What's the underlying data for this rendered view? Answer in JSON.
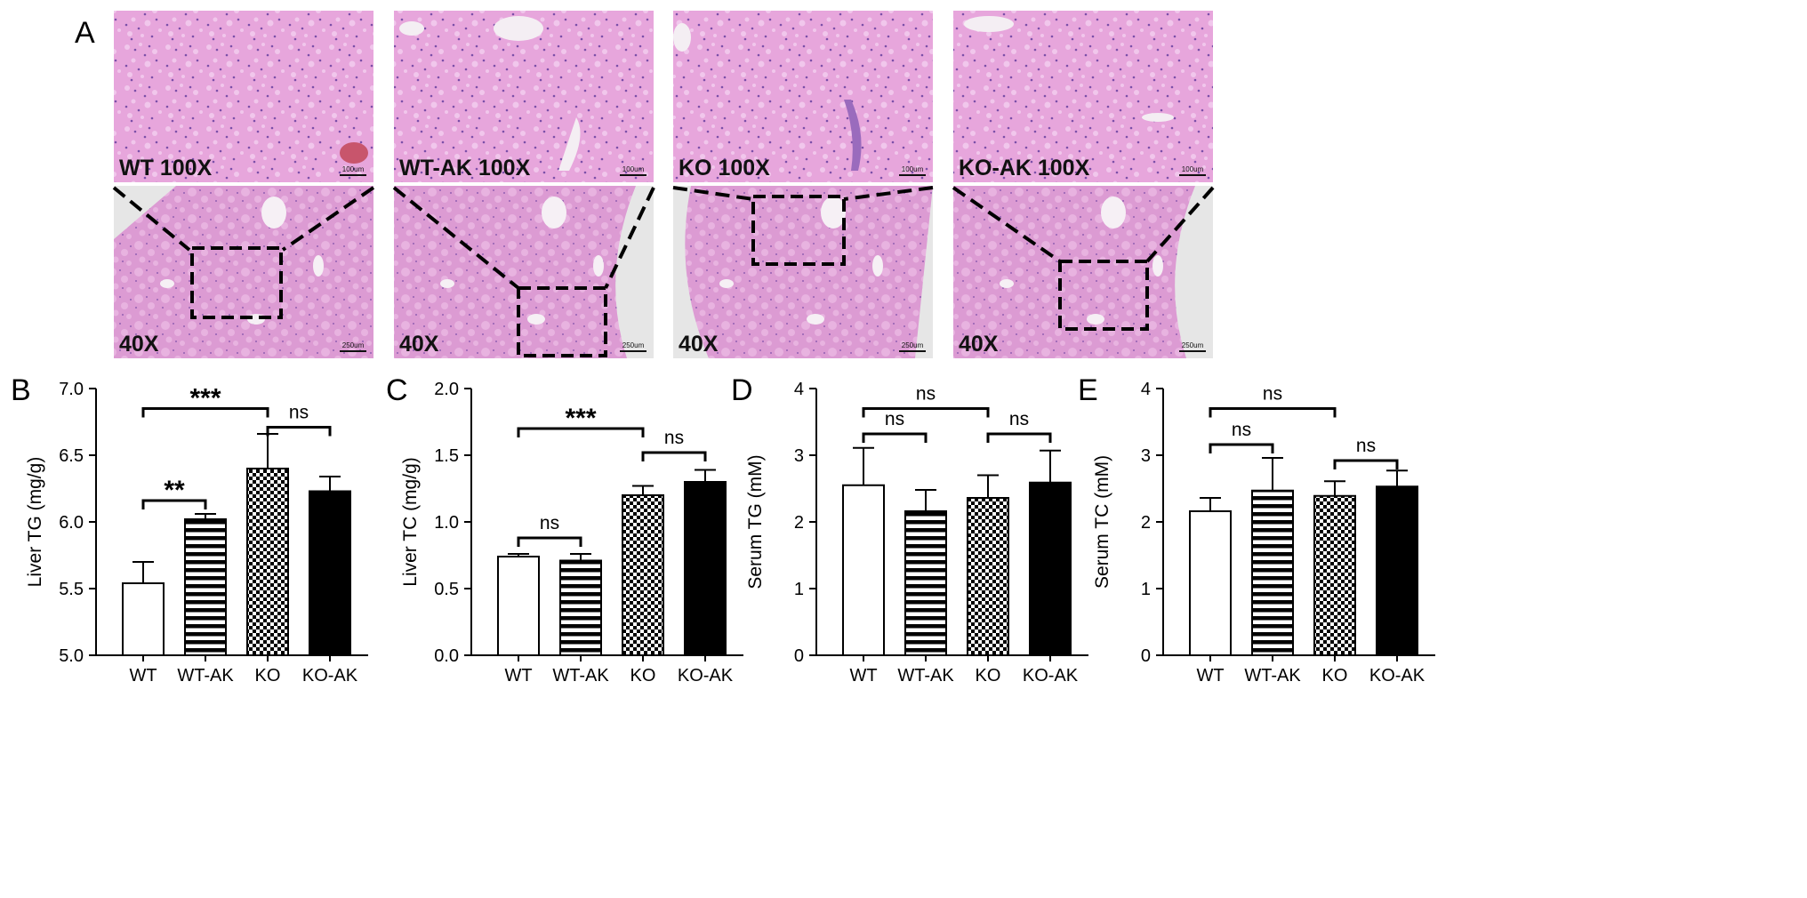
{
  "panel_a": {
    "letter": "A",
    "groups": [
      {
        "id": "wt",
        "top_label": "WT  100X",
        "bottom_label": "40X",
        "scale_top": "100um",
        "scale_bottom": "250um"
      },
      {
        "id": "wt-ak",
        "top_label": "WT-AK  100X",
        "bottom_label": "40X",
        "scale_top": "100um",
        "scale_bottom": "250um"
      },
      {
        "id": "ko",
        "top_label": "KO  100X",
        "bottom_label": "40X",
        "scale_top": "100um",
        "scale_bottom": "250um"
      },
      {
        "id": "ko-ak",
        "top_label": "KO-AK  100X",
        "bottom_label": "40X",
        "scale_top": "100um",
        "scale_bottom": "250um"
      }
    ]
  },
  "colors": {
    "tissue_pink": "#e7a6dc",
    "tissue_light": "#f1c7ec",
    "tissue_deep": "#cf7fc4",
    "nuclei": "#7b4fa8",
    "background_gray": "#e6e6e6",
    "bar_edge": "#000000"
  },
  "chart_data": [
    {
      "type": "bar",
      "panel": "B",
      "categories": [
        "WT",
        "WT-AK",
        "KO",
        "KO-AK"
      ],
      "values": [
        5.54,
        6.02,
        6.4,
        6.23
      ],
      "errors": [
        0.16,
        0.04,
        0.26,
        0.11
      ],
      "patterns": [
        "open",
        "hlines",
        "checker",
        "solid"
      ],
      "ylabel": "Liver TG (mg/g)",
      "ylim": [
        5.0,
        7.0
      ],
      "yticks": [
        "5.0",
        "5.5",
        "6.0",
        "6.5",
        "7.0"
      ],
      "ytick_values": [
        5.0,
        5.5,
        6.0,
        6.5,
        7.0
      ],
      "comparisons": [
        {
          "from": 0,
          "to": 2,
          "y": 6.85,
          "label": "***"
        },
        {
          "from": 2,
          "to": 3,
          "y": 6.71,
          "label": "ns"
        },
        {
          "from": 0,
          "to": 1,
          "y": 6.16,
          "label": "**"
        }
      ]
    },
    {
      "type": "bar",
      "panel": "C",
      "categories": [
        "WT",
        "WT-AK",
        "KO",
        "KO-AK"
      ],
      "values": [
        0.74,
        0.71,
        1.2,
        1.3
      ],
      "errors": [
        0.02,
        0.05,
        0.07,
        0.09
      ],
      "patterns": [
        "open",
        "hlines",
        "checker",
        "solid"
      ],
      "ylabel": "Liver TC (mg/g)",
      "ylim": [
        0.0,
        2.0
      ],
      "yticks": [
        "0.0",
        "0.5",
        "1.0",
        "1.5",
        "2.0"
      ],
      "ytick_values": [
        0.0,
        0.5,
        1.0,
        1.5,
        2.0
      ],
      "comparisons": [
        {
          "from": 0,
          "to": 2,
          "y": 1.7,
          "label": "***"
        },
        {
          "from": 2,
          "to": 3,
          "y": 1.52,
          "label": "ns"
        },
        {
          "from": 0,
          "to": 1,
          "y": 0.88,
          "label": "ns"
        }
      ]
    },
    {
      "type": "bar",
      "panel": "D",
      "categories": [
        "WT",
        "WT-AK",
        "KO",
        "KO-AK"
      ],
      "values": [
        2.55,
        2.16,
        2.36,
        2.59
      ],
      "errors": [
        0.56,
        0.32,
        0.34,
        0.48
      ],
      "patterns": [
        "open",
        "hlines",
        "checker",
        "solid"
      ],
      "ylabel": "Serum TG (mM)",
      "ylim": [
        0,
        4
      ],
      "yticks": [
        "0",
        "1",
        "2",
        "3",
        "4"
      ],
      "ytick_values": [
        0,
        1,
        2,
        3,
        4
      ],
      "comparisons": [
        {
          "from": 0,
          "to": 2,
          "y": 3.7,
          "label": "ns"
        },
        {
          "from": 0,
          "to": 1,
          "y": 3.32,
          "label": "ns"
        },
        {
          "from": 2,
          "to": 3,
          "y": 3.32,
          "label": "ns"
        }
      ]
    },
    {
      "type": "bar",
      "panel": "E",
      "categories": [
        "WT",
        "WT-AK",
        "KO",
        "KO-AK"
      ],
      "values": [
        2.16,
        2.47,
        2.39,
        2.53
      ],
      "errors": [
        0.2,
        0.49,
        0.22,
        0.24
      ],
      "patterns": [
        "open",
        "hlines",
        "checker",
        "solid"
      ],
      "ylabel": "Serum TC (mM)",
      "ylim": [
        0,
        4
      ],
      "yticks": [
        "0",
        "1",
        "2",
        "3",
        "4"
      ],
      "ytick_values": [
        0,
        1,
        2,
        3,
        4
      ],
      "comparisons": [
        {
          "from": 0,
          "to": 2,
          "y": 3.7,
          "label": "ns"
        },
        {
          "from": 0,
          "to": 1,
          "y": 3.16,
          "label": "ns"
        },
        {
          "from": 2,
          "to": 3,
          "y": 2.92,
          "label": "ns"
        }
      ]
    }
  ]
}
